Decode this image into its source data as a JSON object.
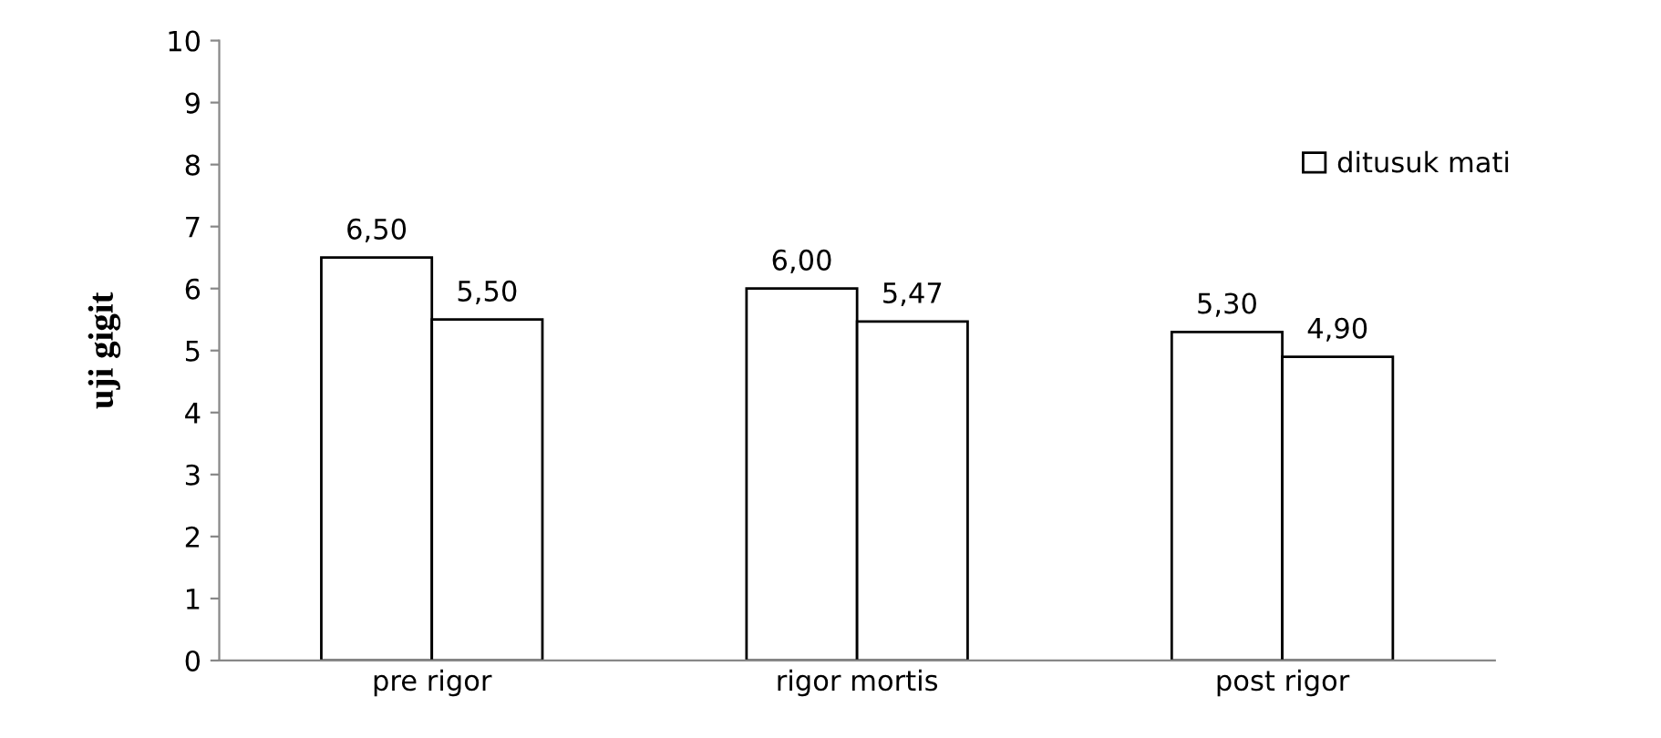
{
  "chart_data": {
    "type": "bar",
    "ylabel": "uji gigit",
    "categories": [
      "pre rigor",
      "rigor mortis",
      "post rigor"
    ],
    "series": [
      {
        "name": "ditusuk mati",
        "color": "#ffffff",
        "values": [
          6.5,
          6.0,
          5.3
        ],
        "value_labels": [
          "6,50",
          "6,00",
          "5,30"
        ]
      },
      {
        "color": "#ffffff",
        "values": [
          5.5,
          5.47,
          4.9
        ],
        "value_labels": [
          "5,50",
          "5,47",
          "4,90"
        ]
      }
    ],
    "ylim": [
      0,
      10
    ],
    "yticks": [
      0,
      1,
      2,
      3,
      4,
      5,
      6,
      7,
      8,
      9,
      10
    ],
    "grid": false,
    "legend": "right"
  }
}
